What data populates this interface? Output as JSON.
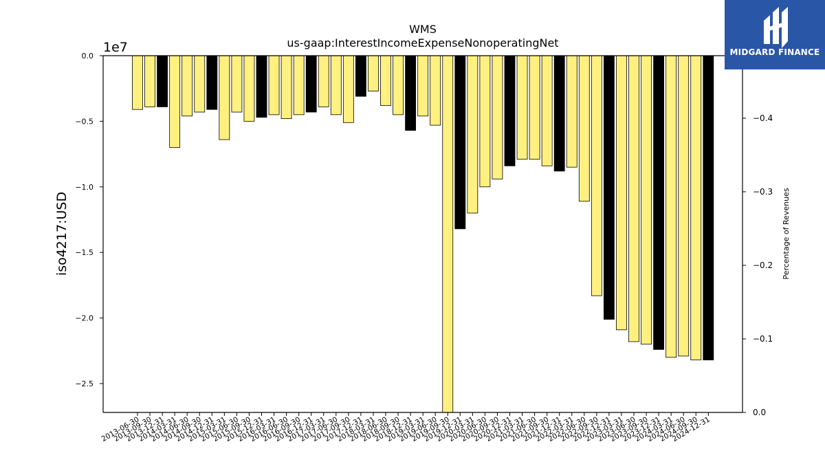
{
  "logo": {
    "text": "MIDGARD FINANCE"
  },
  "chart_data": {
    "type": "bar",
    "title": "WMS",
    "subtitle": "us-gaap:InterestIncomeExpenseNonoperatingNet",
    "ylabel": "iso4217:USD",
    "y_offset_label": "1e7",
    "y2label": "Percentage of Revenues",
    "ylim": [
      -2.72,
      0.0
    ],
    "yscale_factor": 10000000,
    "yticks": [
      0.0,
      -0.5,
      -1.0,
      -1.5,
      -2.0,
      -2.5
    ],
    "ytick_labels": [
      "0.0",
      "−0.5",
      "−1.0",
      "−1.5",
      "−2.0",
      "−2.5"
    ],
    "y2lim": [
      0.0,
      -0.485
    ],
    "y2ticks": [
      0.0,
      -0.1,
      -0.2,
      -0.3,
      -0.4
    ],
    "y2tick_labels": [
      "0.0",
      "−0.1",
      "−0.2",
      "−0.3",
      "−0.4"
    ],
    "colors": {
      "quarterly": "#fff07f",
      "annual": "#000000",
      "edge": "#000000"
    },
    "categories": [
      "2013-06-30",
      "2013-09-30",
      "2013-12-31",
      "2014-03-31",
      "2014-06-30",
      "2014-09-30",
      "2014-12-31",
      "2015-03-31",
      "2015-06-30",
      "2015-09-30",
      "2015-12-31",
      "2016-03-31",
      "2016-06-30",
      "2016-09-30",
      "2016-12-31",
      "2017-03-31",
      "2017-06-30",
      "2017-09-30",
      "2017-12-31",
      "2018-03-31",
      "2018-06-30",
      "2018-09-30",
      "2018-12-31",
      "2019-03-31",
      "2019-06-30",
      "2019-09-30",
      "2019-12-31",
      "2020-03-31",
      "2020-06-30",
      "2020-09-30",
      "2020-12-31",
      "2021-03-31",
      "2021-06-30",
      "2021-09-30",
      "2021-12-31",
      "2022-03-31",
      "2022-06-30",
      "2022-09-30",
      "2022-12-31",
      "2023-03-31",
      "2023-06-30",
      "2023-09-30",
      "2023-12-31",
      "2024-03-31",
      "2024-06-30",
      "2024-09-30",
      "2024-12-31"
    ],
    "values": [
      -0.41,
      -0.39,
      -0.39,
      -0.7,
      -0.46,
      -0.43,
      -0.41,
      -0.64,
      -0.43,
      -0.5,
      -0.47,
      -0.45,
      -0.48,
      -0.45,
      -0.43,
      -0.39,
      -0.45,
      -0.51,
      -0.31,
      -0.27,
      -0.38,
      -0.45,
      -0.57,
      -0.46,
      -0.53,
      -2.72,
      -1.32,
      -1.2,
      -1.0,
      -0.94,
      -0.84,
      -0.79,
      -0.79,
      -0.84,
      -0.88,
      -0.85,
      -1.11,
      -1.83,
      -2.01,
      -2.09,
      -2.18,
      -2.2,
      -2.24,
      -2.3,
      -2.29,
      -2.32,
      -2.32
    ],
    "annual": [
      false,
      false,
      true,
      false,
      false,
      false,
      true,
      false,
      false,
      false,
      true,
      false,
      false,
      false,
      true,
      false,
      false,
      false,
      true,
      false,
      false,
      false,
      true,
      false,
      false,
      false,
      true,
      false,
      false,
      false,
      true,
      false,
      false,
      false,
      true,
      false,
      false,
      false,
      true,
      false,
      false,
      false,
      true,
      false,
      false,
      false,
      true
    ]
  }
}
